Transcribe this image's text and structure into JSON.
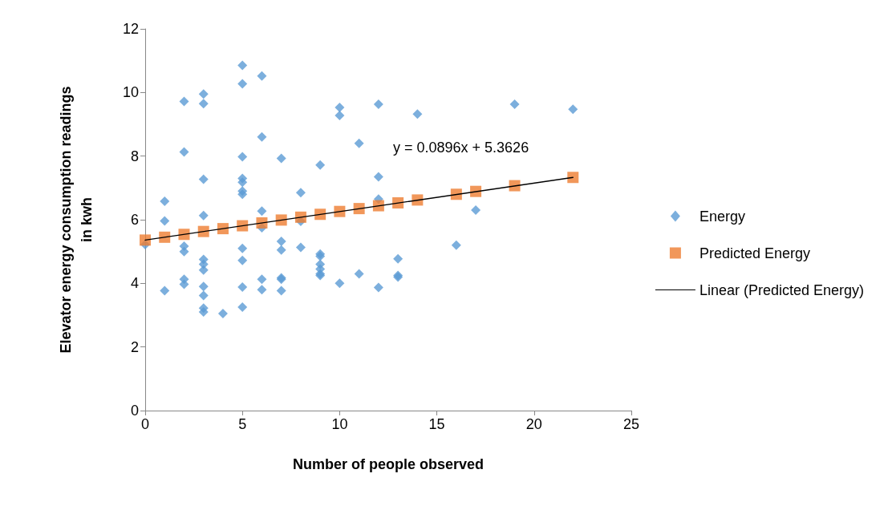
{
  "chart_data": {
    "type": "scatter",
    "xlabel": "Number of people observed",
    "ylabel": "Elevator energy consumption readings in kwh",
    "xlim": [
      0,
      25
    ],
    "xticks": [
      0,
      5,
      10,
      15,
      20,
      25
    ],
    "ylim": [
      0,
      12
    ],
    "yticks": [
      0,
      2,
      4,
      6,
      8,
      10,
      12
    ],
    "grid": false,
    "legend": "right",
    "annotations": [
      "y = 0.0896x + 5.3626"
    ],
    "series": [
      {
        "name": "Energy",
        "marker": "diamond",
        "color": "#5b9bd5",
        "x": [
          0,
          1,
          1,
          1,
          2,
          2,
          2,
          2,
          2,
          2,
          3,
          3,
          3,
          3,
          3,
          3,
          3,
          3,
          3,
          3,
          3,
          4,
          5,
          5,
          5,
          5,
          5,
          5,
          5,
          5,
          5,
          5,
          5,
          6,
          6,
          6,
          6,
          6,
          6,
          7,
          7,
          7,
          7,
          7,
          7,
          8,
          8,
          8,
          9,
          9,
          9,
          9,
          9,
          9,
          9,
          10,
          10,
          10,
          11,
          11,
          12,
          12,
          12,
          12,
          13,
          13,
          13,
          14,
          16,
          17,
          19,
          22
        ],
        "values": [
          5.22,
          6.58,
          5.96,
          3.77,
          9.72,
          8.13,
          5.17,
          5.0,
          4.13,
          3.97,
          9.95,
          9.65,
          7.27,
          6.13,
          4.75,
          4.6,
          4.42,
          3.9,
          3.62,
          3.22,
          3.1,
          3.05,
          10.85,
          10.27,
          7.98,
          7.3,
          7.18,
          6.9,
          6.8,
          5.1,
          4.72,
          3.88,
          3.25,
          10.52,
          8.6,
          6.27,
          5.75,
          4.13,
          3.8,
          7.93,
          5.32,
          5.05,
          4.17,
          4.13,
          3.77,
          6.85,
          5.95,
          5.13,
          7.72,
          4.92,
          4.85,
          4.6,
          4.45,
          4.3,
          4.25,
          9.53,
          9.28,
          4.0,
          8.4,
          4.3,
          9.63,
          7.35,
          6.65,
          3.87,
          4.77,
          4.25,
          4.2,
          9.32,
          5.2,
          6.3,
          9.63,
          9.47
        ]
      },
      {
        "name": "Predicted Energy",
        "marker": "square",
        "color": "#ed7d31",
        "x": [
          0,
          1,
          2,
          3,
          4,
          5,
          6,
          7,
          8,
          9,
          10,
          11,
          12,
          13,
          14,
          16,
          17,
          19,
          22
        ],
        "values": [
          5.36,
          5.45,
          5.54,
          5.63,
          5.72,
          5.81,
          5.9,
          5.99,
          6.08,
          6.17,
          6.26,
          6.35,
          6.44,
          6.53,
          6.62,
          6.8,
          6.89,
          7.07,
          7.33
        ]
      },
      {
        "name": "Linear (Predicted Energy)",
        "type": "line",
        "marker": "none",
        "line_style": "solid",
        "color": "#000000",
        "x": [
          0,
          22
        ],
        "values": [
          5.36,
          7.33
        ]
      }
    ]
  }
}
